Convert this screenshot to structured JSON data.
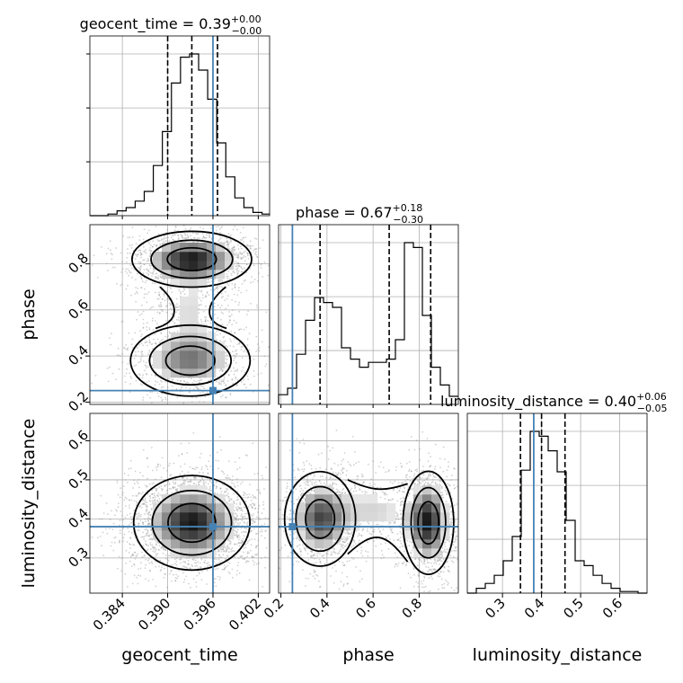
{
  "chart_data": {
    "type": "corner",
    "parameters": [
      "geocent_time",
      "phase",
      "luminosity_distance"
    ],
    "axis_labels": [
      "geocent_time",
      "phase",
      "luminosity_distance"
    ],
    "ranges": {
      "geocent_time": [
        0.3797,
        0.4035
      ],
      "phase": [
        0.19,
        0.97
      ],
      "luminosity_distance": [
        0.21,
        0.67
      ]
    },
    "ticks": {
      "geocent_time": [
        "0.384",
        "0.390",
        "0.396",
        "0.402"
      ],
      "phase_x": [
        "0.2",
        "0.4",
        "0.6",
        "0.8"
      ],
      "phase_y": [
        "0.2",
        "0.4",
        "0.6",
        "0.8"
      ],
      "luminosity_distance_x": [
        "0.3",
        "0.4",
        "0.5",
        "0.6"
      ],
      "luminosity_distance_y": [
        "0.3",
        "0.4",
        "0.5",
        "0.6"
      ]
    },
    "truths": {
      "geocent_time": 0.396,
      "phase": 0.25,
      "luminosity_distance": 0.38
    },
    "truth_color": "#4682b4",
    "titles": [
      {
        "param": "geocent_time",
        "label": "geocent_time = 0.39",
        "plus": "+0.00",
        "minus": "−0.00"
      },
      {
        "param": "phase",
        "label": "phase = 0.67",
        "plus": "+0.18",
        "minus": "−0.30"
      },
      {
        "param": "luminosity_distance",
        "label": "luminosity_distance = 0.40",
        "plus": "+0.06",
        "minus": "−0.05"
      }
    ],
    "quantiles": {
      "geocent_time": [
        0.39,
        0.3932,
        0.3966
      ],
      "phase": [
        0.37,
        0.67,
        0.85
      ],
      "luminosity_distance": [
        0.346,
        0.4,
        0.46
      ]
    },
    "histograms": {
      "geocent_time": {
        "bin_edges": [
          0.3797,
          0.3809,
          0.3821,
          0.3833,
          0.3845,
          0.3857,
          0.3869,
          0.3881,
          0.3893,
          0.3905,
          0.3917,
          0.3929,
          0.3941,
          0.3953,
          0.3965,
          0.3977,
          0.3989,
          0.4001,
          0.4013,
          0.4025,
          0.4035
        ],
        "counts": [
          0,
          0,
          0.01,
          0.03,
          0.05,
          0.09,
          0.15,
          0.31,
          0.52,
          0.82,
          0.98,
          1.0,
          0.9,
          0.72,
          0.45,
          0.24,
          0.11,
          0.05,
          0.02,
          0.01
        ]
      },
      "phase": {
        "bin_edges": [
          0.19,
          0.229,
          0.268,
          0.307,
          0.346,
          0.385,
          0.424,
          0.463,
          0.502,
          0.541,
          0.58,
          0.619,
          0.658,
          0.697,
          0.736,
          0.775,
          0.814,
          0.853,
          0.892,
          0.931,
          0.97
        ],
        "counts": [
          0.06,
          0.1,
          0.31,
          0.52,
          0.66,
          0.63,
          0.6,
          0.35,
          0.28,
          0.23,
          0.26,
          0.26,
          0.28,
          0.4,
          1.0,
          0.97,
          0.55,
          0.23,
          0.12,
          0.05
        ]
      },
      "luminosity_distance": {
        "bin_edges": [
          0.21,
          0.233,
          0.256,
          0.279,
          0.302,
          0.325,
          0.348,
          0.371,
          0.394,
          0.417,
          0.44,
          0.463,
          0.486,
          0.509,
          0.532,
          0.555,
          0.578,
          0.601,
          0.624,
          0.647,
          0.67
        ],
        "counts": [
          0,
          0.03,
          0.06,
          0.11,
          0.2,
          0.35,
          0.76,
          1.0,
          0.97,
          0.88,
          0.75,
          0.45,
          0.2,
          0.17,
          0.11,
          0.06,
          0.03,
          0.01,
          0.01,
          0
        ]
      }
    },
    "blobs": {
      "phase_vs_geocent_time": [
        {
          "mx": 0.3932,
          "my": 0.82,
          "sx": 0.0036,
          "sy": 0.055,
          "w": 0.75
        },
        {
          "mx": 0.393,
          "my": 0.38,
          "sx": 0.0036,
          "sy": 0.07,
          "w": 0.5
        },
        {
          "mx": 0.393,
          "my": 0.6,
          "sx": 0.003,
          "sy": 0.12,
          "w": 0.25
        }
      ],
      "luminosity_distance_vs_geocent_time": [
        {
          "mx": 0.3932,
          "my": 0.39,
          "sx": 0.0035,
          "sy": 0.055,
          "w": 1.0
        }
      ],
      "luminosity_distance_vs_phase": [
        {
          "mx": 0.37,
          "my": 0.4,
          "sx": 0.07,
          "sy": 0.055,
          "w": 0.45
        },
        {
          "mx": 0.84,
          "my": 0.39,
          "sx": 0.05,
          "sy": 0.06,
          "w": 0.55
        },
        {
          "mx": 0.6,
          "my": 0.42,
          "sx": 0.13,
          "sy": 0.05,
          "w": 0.2
        }
      ]
    },
    "contour_levels": 3,
    "grid": true
  }
}
